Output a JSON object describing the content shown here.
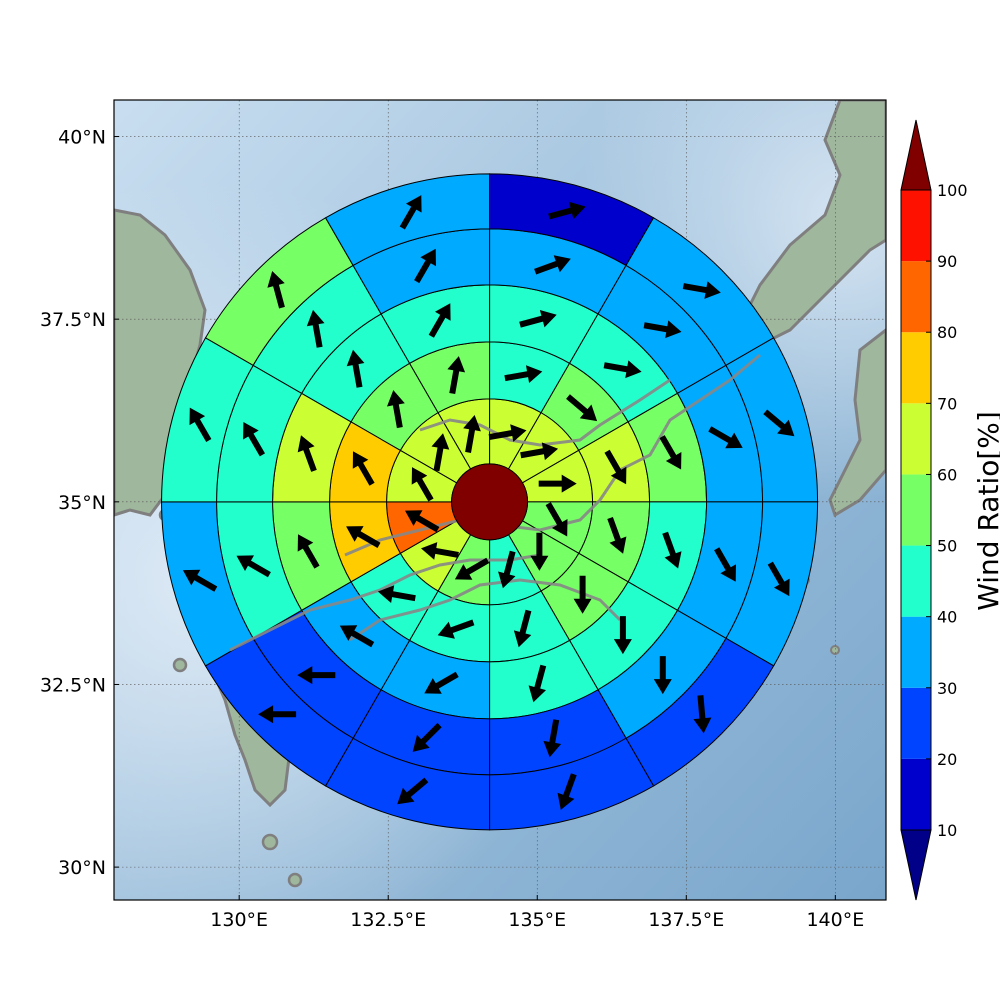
{
  "chart_data": {
    "type": "heatmap",
    "subtype": "polar-sector-map-with-wind-vectors",
    "map": {
      "lon_range": [
        127.9,
        140.85
      ],
      "lat_range": [
        29.55,
        40.5
      ],
      "xticks": [
        130,
        132.5,
        135,
        137.5,
        140
      ],
      "xtick_labels": [
        "130°E",
        "132.5°E",
        "135°E",
        "137.5°E",
        "140°E"
      ],
      "yticks": [
        30,
        32.5,
        35,
        37.5,
        40
      ],
      "ytick_labels": [
        "30°N",
        "32.5°N",
        "35°N",
        "37.5°N",
        "40°N"
      ],
      "grid": true,
      "center": {
        "lon": 134.2,
        "lat": 35.0
      },
      "center_value": 100
    },
    "colorbar": {
      "label": "Wind Ratio[%]",
      "levels": [
        10,
        20,
        30,
        40,
        50,
        60,
        70,
        80,
        90,
        100
      ],
      "tick_labels": [
        "10",
        "20",
        "30",
        "40",
        "50",
        "60",
        "70",
        "80",
        "90",
        "100"
      ],
      "colors": [
        "#0000cc",
        "#0044ff",
        "#00aaff",
        "#22ffcc",
        "#77ff66",
        "#ccff33",
        "#ffcc00",
        "#ff6600",
        "#ff1100"
      ],
      "under_color": "#000088",
      "over_color": "#800000",
      "extend": "both"
    },
    "sector_directions_deg_clockwise_from_north": [
      15,
      45,
      75,
      105,
      135,
      165,
      195,
      225,
      255,
      285,
      315,
      345
    ],
    "rings": [
      {
        "ring": 1,
        "values": [
          60,
          65,
          65,
          55,
          55,
          45,
          55,
          65,
          85,
          65,
          60,
          65
        ],
        "wind_to_deg": [
          80,
          80,
          90,
          150,
          180,
          195,
          240,
          280,
          300,
          330,
          10,
          10
        ]
      },
      {
        "ring": 2,
        "values": [
          45,
          55,
          65,
          55,
          50,
          45,
          40,
          45,
          70,
          75,
          55,
          55
        ],
        "wind_to_deg": [
          80,
          130,
          150,
          160,
          180,
          195,
          250,
          280,
          300,
          330,
          350,
          10
        ]
      },
      {
        "ring": 3,
        "values": [
          45,
          45,
          55,
          45,
          45,
          40,
          35,
          35,
          55,
          65,
          45,
          45
        ],
        "wind_to_deg": [
          75,
          100,
          150,
          160,
          180,
          195,
          240,
          300,
          330,
          340,
          350,
          30
        ]
      },
      {
        "ring": 4,
        "values": [
          35,
          35,
          35,
          35,
          30,
          25,
          25,
          25,
          40,
          45,
          40,
          35
        ],
        "wind_to_deg": [
          70,
          100,
          120,
          150,
          180,
          190,
          225,
          270,
          300,
          330,
          350,
          30
        ]
      },
      {
        "ring": 5,
        "values": [
          15,
          35,
          35,
          35,
          25,
          25,
          25,
          20,
          35,
          40,
          55,
          35
        ],
        "wind_to_deg": [
          75,
          100,
          130,
          150,
          175,
          200,
          230,
          270,
          300,
          330,
          345,
          30
        ]
      }
    ]
  }
}
